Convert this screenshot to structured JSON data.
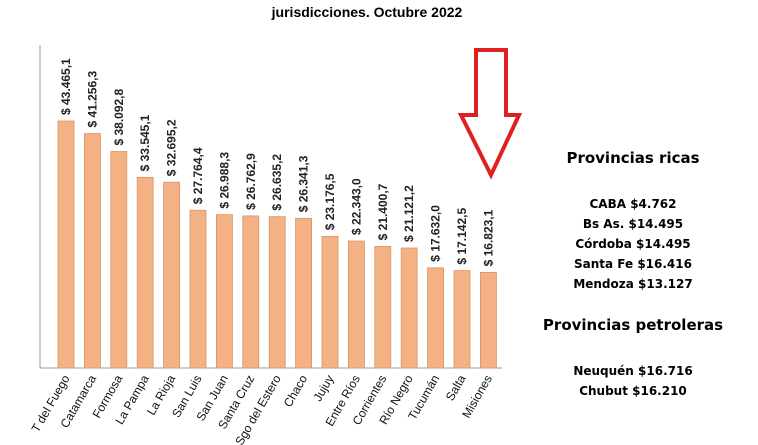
{
  "chart_data": {
    "type": "bar",
    "title": "jurisdicciones. Octubre 2022",
    "categories": [
      "T del Fuego",
      "Catamarca",
      "Formosa",
      "La Pampa",
      "La Rioja",
      "San Luis",
      "San Juan",
      "Santa Cruz",
      "Sgo del Estero",
      "Chaco",
      "Jujuy",
      "Entre Ríos",
      "Corrientes",
      "Río Negro",
      "Tucumán",
      "Salta",
      "Misiones"
    ],
    "values": [
      43465.1,
      41256.3,
      38092.8,
      33545.1,
      32695.2,
      27764.4,
      26988.3,
      26762.9,
      26635.2,
      26341.3,
      23176.5,
      22343.0,
      21400.7,
      21121.2,
      17632.0,
      17142.5,
      16823.1
    ],
    "value_labels": [
      "$ 43.465,1",
      "$ 41.256,3",
      "$ 38.092,8",
      "$ 33.545,1",
      "$ 32.695,2",
      "$ 27.764,4",
      "$ 26.988,3",
      "$ 26.762,9",
      "$ 26.635,2",
      "$ 26.341,3",
      "$ 23.176,5",
      "$ 22.343,0",
      "$ 21.400,7",
      "$ 21.121,2",
      "$ 17.632,0",
      "$ 17.142,5",
      "$ 16.823,1"
    ],
    "color": "#f4b183",
    "annotations": [
      {
        "title": "Provincias ricas",
        "items": [
          "CABA $4.762",
          "Bs As. $14.495",
          "Córdoba $14.495",
          "Santa Fe $16.416",
          "Mendoza $13.127"
        ]
      },
      {
        "title": "Provincias petroleras",
        "items": [
          "Neuquén $16.716",
          "Chubut $16.210"
        ]
      }
    ]
  }
}
